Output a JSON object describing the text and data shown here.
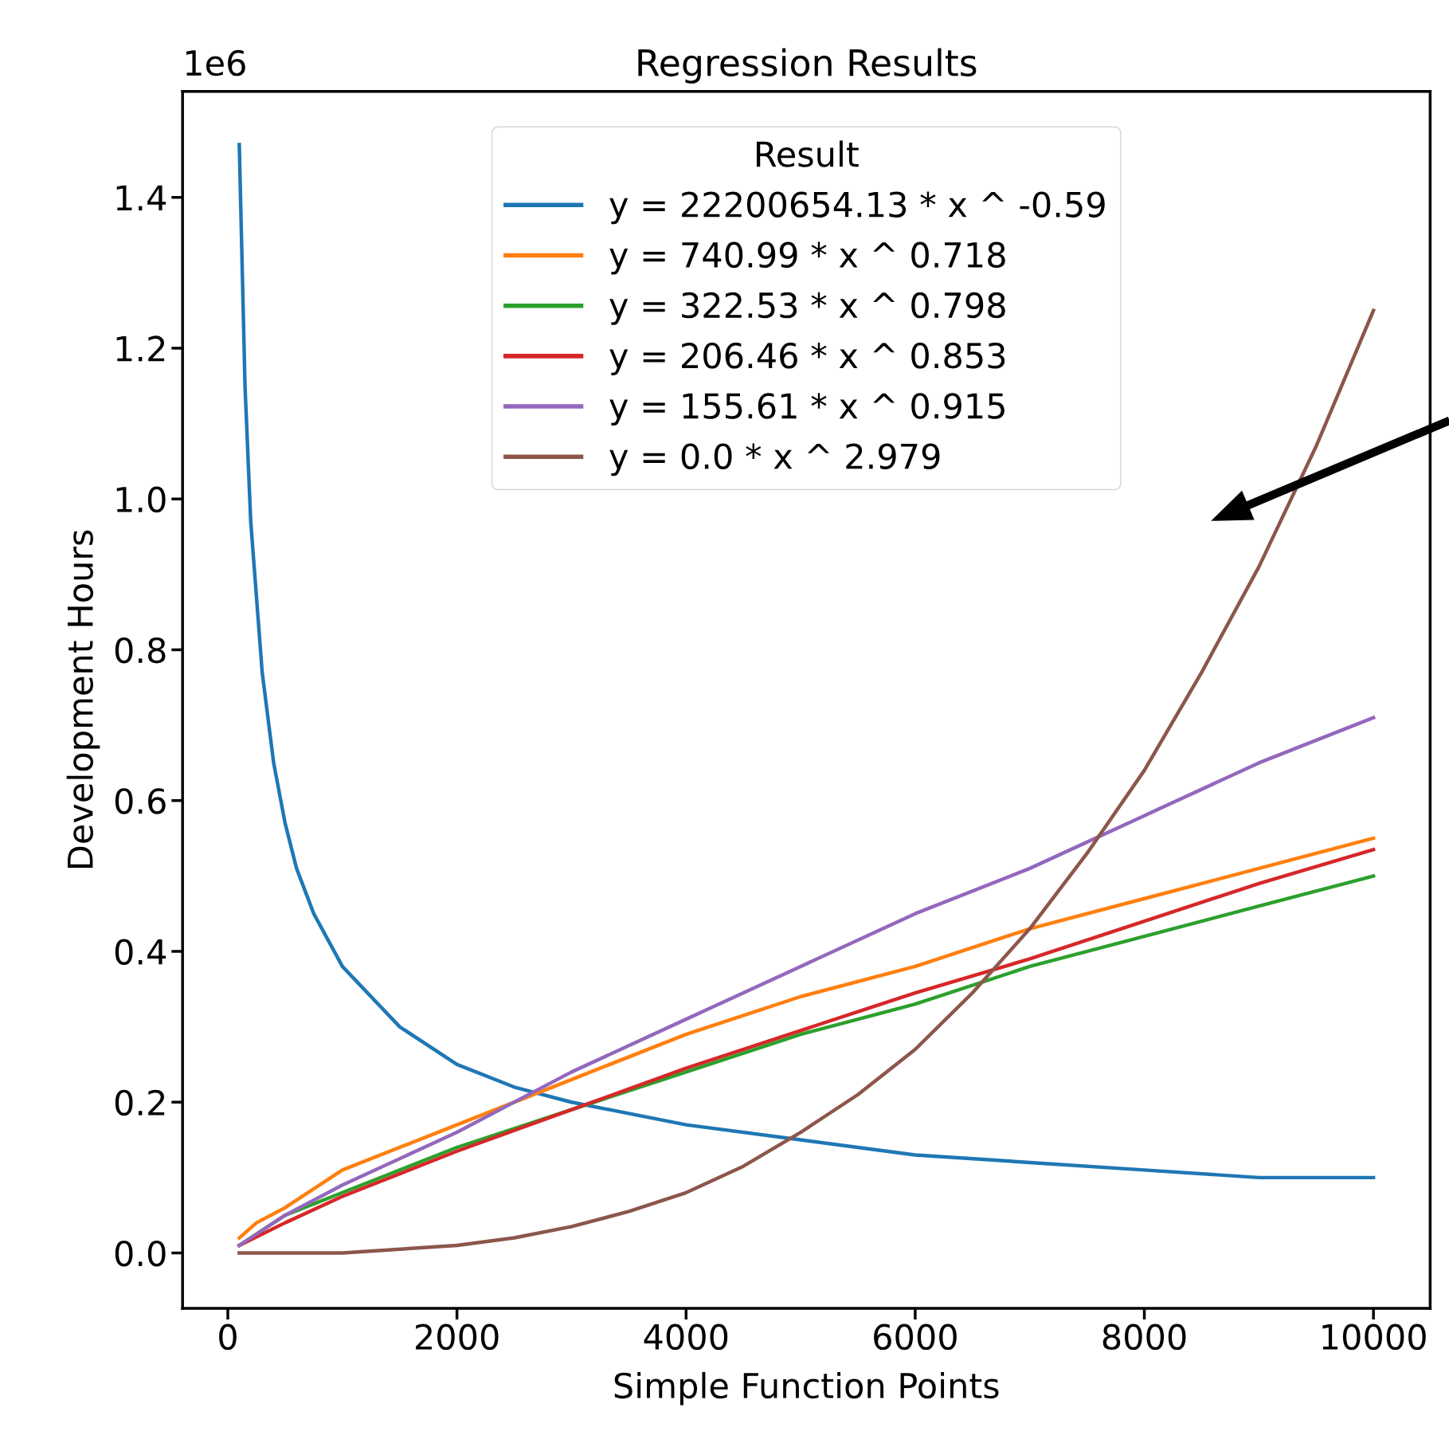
{
  "chart_data": {
    "type": "line",
    "title": "Regression Results",
    "xlabel": "Simple Function Points",
    "ylabel": "Development Hours",
    "legend_title": "Result",
    "legend": "top",
    "grid": false,
    "xlim": [
      -395,
      10495
    ],
    "xticks": [
      0,
      2000,
      4000,
      6000,
      8000,
      10000
    ],
    "ylim": [
      -0.0735,
      1.5405
    ],
    "yticks": [
      {
        "value": 0,
        "label": "0.0"
      },
      0.2,
      0.4,
      0.6,
      0.8,
      {
        "value": 1,
        "label": "1.0"
      },
      1.2,
      1.4
    ],
    "annotations": [
      "1e6"
    ],
    "series": [
      {
        "name": "y = 22200654.13 * x ^ -0.59",
        "color": "#1f77b4",
        "x": [
          100,
          150,
          200,
          300,
          400,
          500,
          600,
          750,
          1000,
          1500,
          2000,
          2500,
          3000,
          4000,
          5000,
          6000,
          7000,
          8000,
          9000,
          10000
        ],
        "values": [
          1.47,
          1.15,
          0.97,
          0.77,
          0.65,
          0.57,
          0.51,
          0.45,
          0.38,
          0.3,
          0.25,
          0.22,
          0.2,
          0.17,
          0.15,
          0.13,
          0.12,
          0.11,
          0.1,
          0.1
        ]
      },
      {
        "name": "y = 740.99 * x ^ 0.718",
        "color": "#ff7f0e",
        "x": [
          100,
          250,
          500,
          1000,
          2000,
          3000,
          4000,
          5000,
          6000,
          7000,
          8000,
          9000,
          10000
        ],
        "values": [
          0.02,
          0.04,
          0.06,
          0.11,
          0.17,
          0.23,
          0.29,
          0.34,
          0.38,
          0.43,
          0.47,
          0.51,
          0.55
        ]
      },
      {
        "name": "y = 322.53 * x ^ 0.798",
        "color": "#2ca02c",
        "x": [
          100,
          500,
          1000,
          2000,
          3000,
          4000,
          5000,
          6000,
          7000,
          8000,
          9000,
          10000
        ],
        "values": [
          0.01,
          0.05,
          0.08,
          0.14,
          0.19,
          0.24,
          0.29,
          0.33,
          0.38,
          0.42,
          0.46,
          0.5
        ]
      },
      {
        "name": "y = 206.46 * x ^ 0.853",
        "color": "#d62728",
        "x": [
          100,
          500,
          1000,
          2000,
          3000,
          4000,
          5000,
          6000,
          7000,
          8000,
          9000,
          10000
        ],
        "values": [
          0.01,
          0.04,
          0.075,
          0.135,
          0.19,
          0.245,
          0.295,
          0.345,
          0.39,
          0.44,
          0.49,
          0.535
        ]
      },
      {
        "name": "y = 155.61 * x ^ 0.915",
        "color": "#9467bd",
        "x": [
          100,
          500,
          1000,
          2000,
          3000,
          4000,
          5000,
          6000,
          7000,
          8000,
          9000,
          10000
        ],
        "values": [
          0.01,
          0.05,
          0.09,
          0.16,
          0.24,
          0.31,
          0.38,
          0.45,
          0.51,
          0.58,
          0.65,
          0.71
        ]
      },
      {
        "name": "y = 0.0 * x ^ 2.979",
        "color": "#8c564b",
        "x": [
          100,
          1000,
          2000,
          2500,
          3000,
          3500,
          4000,
          4500,
          5000,
          5500,
          6000,
          6500,
          7000,
          7500,
          8000,
          8500,
          9000,
          9500,
          10000
        ],
        "values": [
          0.0,
          0.0,
          0.01,
          0.02,
          0.035,
          0.055,
          0.08,
          0.115,
          0.16,
          0.21,
          0.27,
          0.345,
          0.43,
          0.53,
          0.64,
          0.77,
          0.91,
          1.07,
          1.25
        ]
      }
    ]
  }
}
